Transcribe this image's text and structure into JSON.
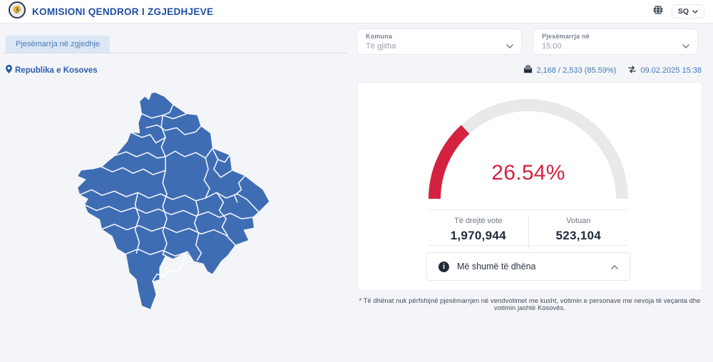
{
  "header": {
    "title": "KOMISIONI QENDROR I ZGJEDHJEVE",
    "language_code": "SQ"
  },
  "tab": {
    "label": "Pjesëmarrja në zgjedhje"
  },
  "filters": {
    "municipality": {
      "label": "Komuna",
      "value": "Të gjitha"
    },
    "participation_time": {
      "label": "Pjesëmarrja në",
      "value": "15:00"
    }
  },
  "region": {
    "label": "Republika e Kosoves"
  },
  "status": {
    "polling_stations": "2,168 / 2,533 (85.59%)",
    "last_updated": "09.02.2025 15:38"
  },
  "turnout": {
    "percent_label": "26.54%",
    "stats": [
      {
        "label": "Të drejtë vote",
        "value": "1,970,944"
      },
      {
        "label": "Votuan",
        "value": "523,104"
      }
    ],
    "more_label": "Më shumë të dhëna"
  },
  "footnote": "* Të dhënat nuk përfshijnë pjesëmarrjen në vendvotimet me kusht, votimin e personave me nevoja të veçanta dhe votimin jashtë Kosovës.",
  "colors": {
    "accent_blue": "#1d4fa1",
    "link_blue": "#4577b7",
    "tab_bg": "#dbe7f5",
    "map_blue": "#3f6db4",
    "gauge_red": "#d32240",
    "gauge_track": "#e9e9eb",
    "page_bg": "#f4f5f9"
  },
  "chart_data": {
    "type": "gauge",
    "value": 26.54,
    "max": 100,
    "label": "26.54%",
    "series_color": "#d32240",
    "track_color": "#e9e9eb",
    "related_values": {
      "eligible_voters": 1970944,
      "voted": 523104
    }
  }
}
